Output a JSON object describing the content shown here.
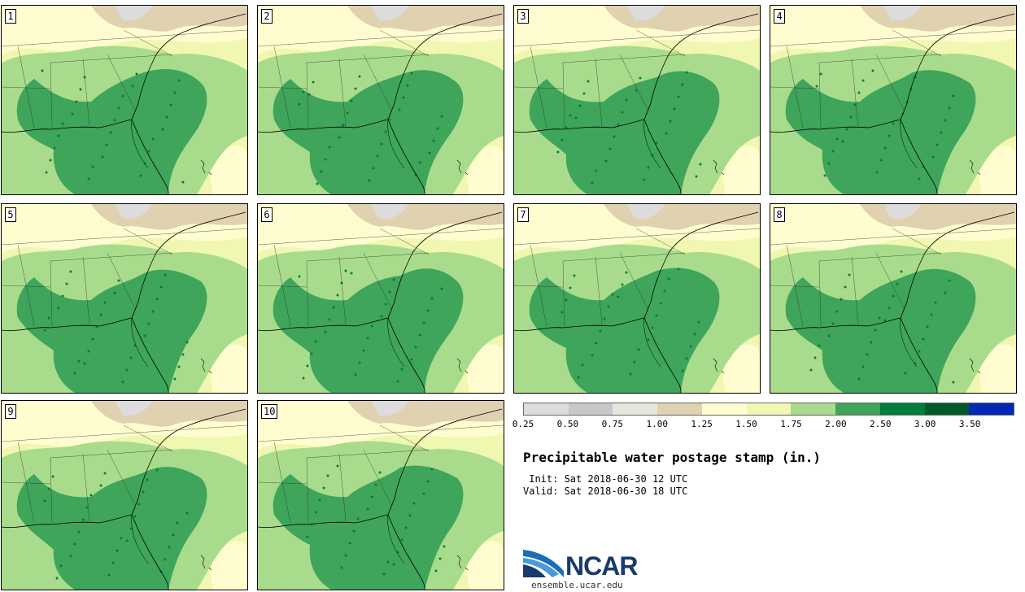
{
  "panels": [
    {
      "label": "1"
    },
    {
      "label": "2"
    },
    {
      "label": "3"
    },
    {
      "label": "4"
    },
    {
      "label": "5"
    },
    {
      "label": "6"
    },
    {
      "label": "7"
    },
    {
      "label": "8"
    },
    {
      "label": "9"
    },
    {
      "label": "10"
    }
  ],
  "legend": {
    "colors": [
      "#dcdcdc",
      "#c8c8c8",
      "#e6e6dc",
      "#e0d2b0",
      "#fffdd0",
      "#f0f7b0",
      "#a8dc8c",
      "#3ea55a",
      "#007d3c",
      "#005a2c",
      "#0028b4"
    ],
    "ticks": [
      "0.25",
      "0.50",
      "0.75",
      "1.00",
      "1.25",
      "1.50",
      "1.75",
      "2.00",
      "2.50",
      "3.00",
      "3.50"
    ]
  },
  "title": "Precipitable water postage stamp (in.)",
  "init": " Init: Sat 2018-06-30 12 UTC",
  "valid": "Valid: Sat 2018-06-30 18 UTC",
  "logo": {
    "word": "NCAR",
    "url": "ensemble.ucar.edu"
  },
  "colors": {
    "very_light_yellow": "#fffdd0",
    "light_yellow_green": "#f0f7b0",
    "light_green": "#a8dc8c",
    "medium_green": "#3ea55a",
    "dark_green": "#007d3c",
    "tan": "#e0d2b0",
    "gray": "#dcdcdc"
  }
}
